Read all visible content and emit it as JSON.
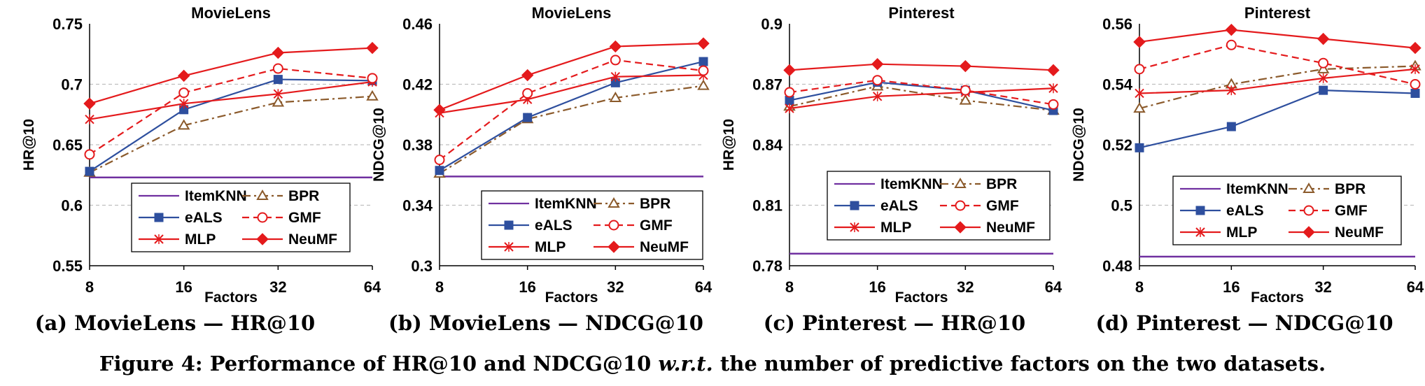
{
  "figure_caption": "Figure 4: Performance of HR@10 and NDCG@10 w.r.t. the number of predictive factors on the two datasets.",
  "figure_caption_parts": {
    "prefix": "Figure 4: Performance of HR@10 and NDCG@10 ",
    "italic": "w.r.t.",
    "suffix": " the number of predictive factors on the two datasets."
  },
  "colors": {
    "ItemKNN": "#7030a0",
    "BPR": "#8b5a2b",
    "eALS": "#2e4f9e",
    "GMF": "#e41a1c",
    "MLP": "#e41a1c",
    "NeuMF": "#e41a1c",
    "grid": "#bfbfbf",
    "axis": "#000000"
  },
  "chart_data": [
    {
      "type": "line",
      "title": "MovieLens",
      "subcaption": "(a) MovieLens — HR@10",
      "xlabel": "Factors",
      "ylabel": "HR@10",
      "x": [
        "8",
        "16",
        "32",
        "64"
      ],
      "yticks": [
        "0.55",
        "0.6",
        "0.65",
        "0.7",
        "0.75"
      ],
      "ylim": [
        0.55,
        0.75
      ],
      "grid": true,
      "legend_placement": "bottom-right",
      "series": [
        {
          "name": "ItemKNN",
          "values": [
            0.623,
            0.623,
            0.623,
            0.623
          ]
        },
        {
          "name": "BPR",
          "values": [
            0.627,
            0.666,
            0.685,
            0.69
          ]
        },
        {
          "name": "eALS",
          "values": [
            0.628,
            0.679,
            0.704,
            0.703
          ]
        },
        {
          "name": "GMF",
          "values": [
            0.642,
            0.693,
            0.713,
            0.705
          ]
        },
        {
          "name": "MLP",
          "values": [
            0.671,
            0.684,
            0.692,
            0.702
          ]
        },
        {
          "name": "NeuMF",
          "values": [
            0.684,
            0.707,
            0.726,
            0.73
          ]
        }
      ]
    },
    {
      "type": "line",
      "title": "MovieLens",
      "subcaption": "(b) MovieLens — NDCG@10",
      "xlabel": "Factors",
      "ylabel": "NDCG@10",
      "x": [
        "8",
        "16",
        "32",
        "64"
      ],
      "yticks": [
        "0.3",
        "0.34",
        "0.38",
        "0.42",
        "0.46"
      ],
      "ylim": [
        0.3,
        0.46
      ],
      "grid": true,
      "legend_placement": "bottom-right",
      "series": [
        {
          "name": "ItemKNN",
          "values": [
            0.359,
            0.359,
            0.359,
            0.359
          ]
        },
        {
          "name": "BPR",
          "values": [
            0.361,
            0.397,
            0.411,
            0.419
          ]
        },
        {
          "name": "eALS",
          "values": [
            0.363,
            0.398,
            0.421,
            0.435
          ]
        },
        {
          "name": "GMF",
          "values": [
            0.37,
            0.414,
            0.436,
            0.429
          ]
        },
        {
          "name": "MLP",
          "values": [
            0.401,
            0.41,
            0.425,
            0.426
          ]
        },
        {
          "name": "NeuMF",
          "values": [
            0.403,
            0.426,
            0.445,
            0.447
          ]
        }
      ]
    },
    {
      "type": "line",
      "title": "Pinterest",
      "subcaption": "(c) Pinterest — HR@10",
      "xlabel": "Factors",
      "ylabel": "HR@10",
      "x": [
        "8",
        "16",
        "32",
        "64"
      ],
      "yticks": [
        "0.78",
        "0.81",
        "0.84",
        "0.87",
        "0.9"
      ],
      "ylim": [
        0.78,
        0.9
      ],
      "grid": true,
      "legend_placement": "bottom-right",
      "series": [
        {
          "name": "ItemKNN",
          "values": [
            0.786,
            0.786,
            0.786,
            0.786
          ]
        },
        {
          "name": "BPR",
          "values": [
            0.859,
            0.869,
            0.862,
            0.857
          ]
        },
        {
          "name": "eALS",
          "values": [
            0.862,
            0.871,
            0.867,
            0.857
          ]
        },
        {
          "name": "GMF",
          "values": [
            0.866,
            0.872,
            0.867,
            0.86
          ]
        },
        {
          "name": "MLP",
          "values": [
            0.858,
            0.864,
            0.866,
            0.868
          ]
        },
        {
          "name": "NeuMF",
          "values": [
            0.877,
            0.88,
            0.879,
            0.877
          ]
        }
      ]
    },
    {
      "type": "line",
      "title": "Pinterest",
      "subcaption": "(d) Pinterest — NDCG@10",
      "xlabel": "Factors",
      "ylabel": "NDCG@10",
      "x": [
        "8",
        "16",
        "32",
        "64"
      ],
      "yticks": [
        "0.48",
        "0.5",
        "0.52",
        "0.54",
        "0.56"
      ],
      "ylim": [
        0.48,
        0.56
      ],
      "grid": true,
      "legend_placement": "bottom-right",
      "series": [
        {
          "name": "ItemKNN",
          "values": [
            0.483,
            0.483,
            0.483,
            0.483
          ]
        },
        {
          "name": "BPR",
          "values": [
            0.532,
            0.54,
            0.545,
            0.546
          ]
        },
        {
          "name": "eALS",
          "values": [
            0.519,
            0.526,
            0.538,
            0.537
          ]
        },
        {
          "name": "GMF",
          "values": [
            0.545,
            0.553,
            0.547,
            0.54
          ]
        },
        {
          "name": "MLP",
          "values": [
            0.537,
            0.538,
            0.542,
            0.545
          ]
        },
        {
          "name": "NeuMF",
          "values": [
            0.554,
            0.558,
            0.555,
            0.552
          ]
        }
      ]
    }
  ]
}
